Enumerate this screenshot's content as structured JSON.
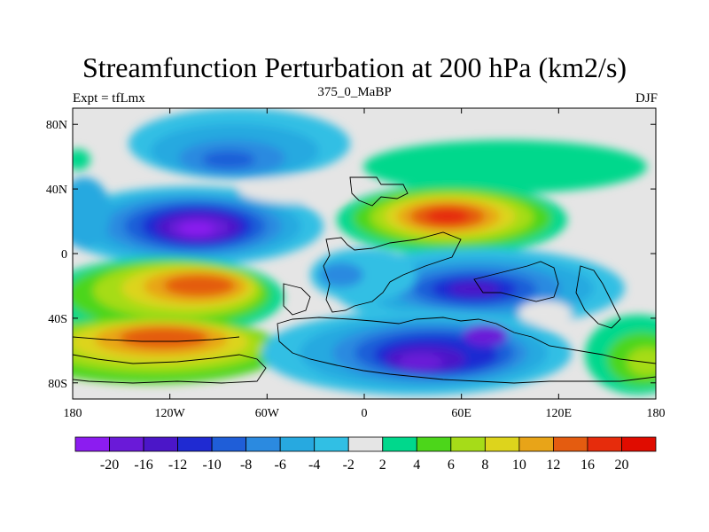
{
  "title": "Streamfunction Perturbation at 200 hPa (km2/s)",
  "subtitle": {
    "left": "Expt = tfLmx",
    "center": "375_0_MaBP",
    "right": "DJF"
  },
  "axes": {
    "x_ticks": [
      "180",
      "120W",
      "60W",
      "0",
      "60E",
      "120E",
      "180"
    ],
    "x_tick_values": [
      -180,
      -120,
      -60,
      0,
      60,
      120,
      180
    ],
    "y_ticks": [
      "80N",
      "40N",
      "0",
      "40S",
      "80S"
    ],
    "y_tick_values": [
      80,
      40,
      0,
      -40,
      -80
    ],
    "xlim": [
      -180,
      180
    ],
    "ylim": [
      -90,
      90
    ]
  },
  "colorbar": {
    "labels": [
      "-20",
      "-16",
      "-12",
      "-10",
      "-8",
      "-6",
      "-4",
      "-2",
      "2",
      "4",
      "6",
      "8",
      "10",
      "12",
      "16",
      "20"
    ],
    "colors": [
      "#8c1cf0",
      "#6a1ad8",
      "#4b16c8",
      "#1f2ad2",
      "#1f5ed8",
      "#2b8ae0",
      "#27a9e0",
      "#31bfe4",
      "#e5e5e5",
      "#00d88c",
      "#4cd61a",
      "#a6dc18",
      "#ddd41c",
      "#e8a418",
      "#e45c10",
      "#e62c0c",
      "#e00c00"
    ]
  },
  "chart_data": {
    "type": "heatmap",
    "title": "Streamfunction Perturbation at 200 hPa (km2/s)",
    "variable": "Streamfunction Perturbation",
    "level": "200 hPa",
    "units": "km2/s",
    "experiment": "Expt = tfLmx",
    "case": "375_0_MaBP",
    "season": "DJF",
    "lon_range": [
      -180,
      180
    ],
    "lat_range": [
      -90,
      90
    ],
    "contour_levels": [
      -20,
      -16,
      -12,
      -10,
      -8,
      -6,
      -4,
      -2,
      2,
      4,
      6,
      8,
      10,
      12,
      16,
      20
    ],
    "features": [
      {
        "lon": -90,
        "lat": 15,
        "value": -20
      },
      {
        "lon": -70,
        "lat": 57,
        "value": -8
      },
      {
        "lon": 45,
        "lat": -68,
        "value": -16
      },
      {
        "lon": 75,
        "lat": -50,
        "value": -16
      },
      {
        "lon": 65,
        "lat": -20,
        "value": -12
      },
      {
        "lon": 50,
        "lat": 22,
        "value": 20
      },
      {
        "lon": -95,
        "lat": -18,
        "value": 16
      },
      {
        "lon": -110,
        "lat": -52,
        "value": 16
      },
      {
        "lon": -8,
        "lat": -15,
        "value": -8
      },
      {
        "lon": 100,
        "lat": 52,
        "value": 4
      },
      {
        "lon": -165,
        "lat": -70,
        "value": 8
      },
      {
        "lon": 165,
        "lat": -65,
        "value": 10
      },
      {
        "lon": 100,
        "lat": -38,
        "value": 0
      }
    ]
  }
}
